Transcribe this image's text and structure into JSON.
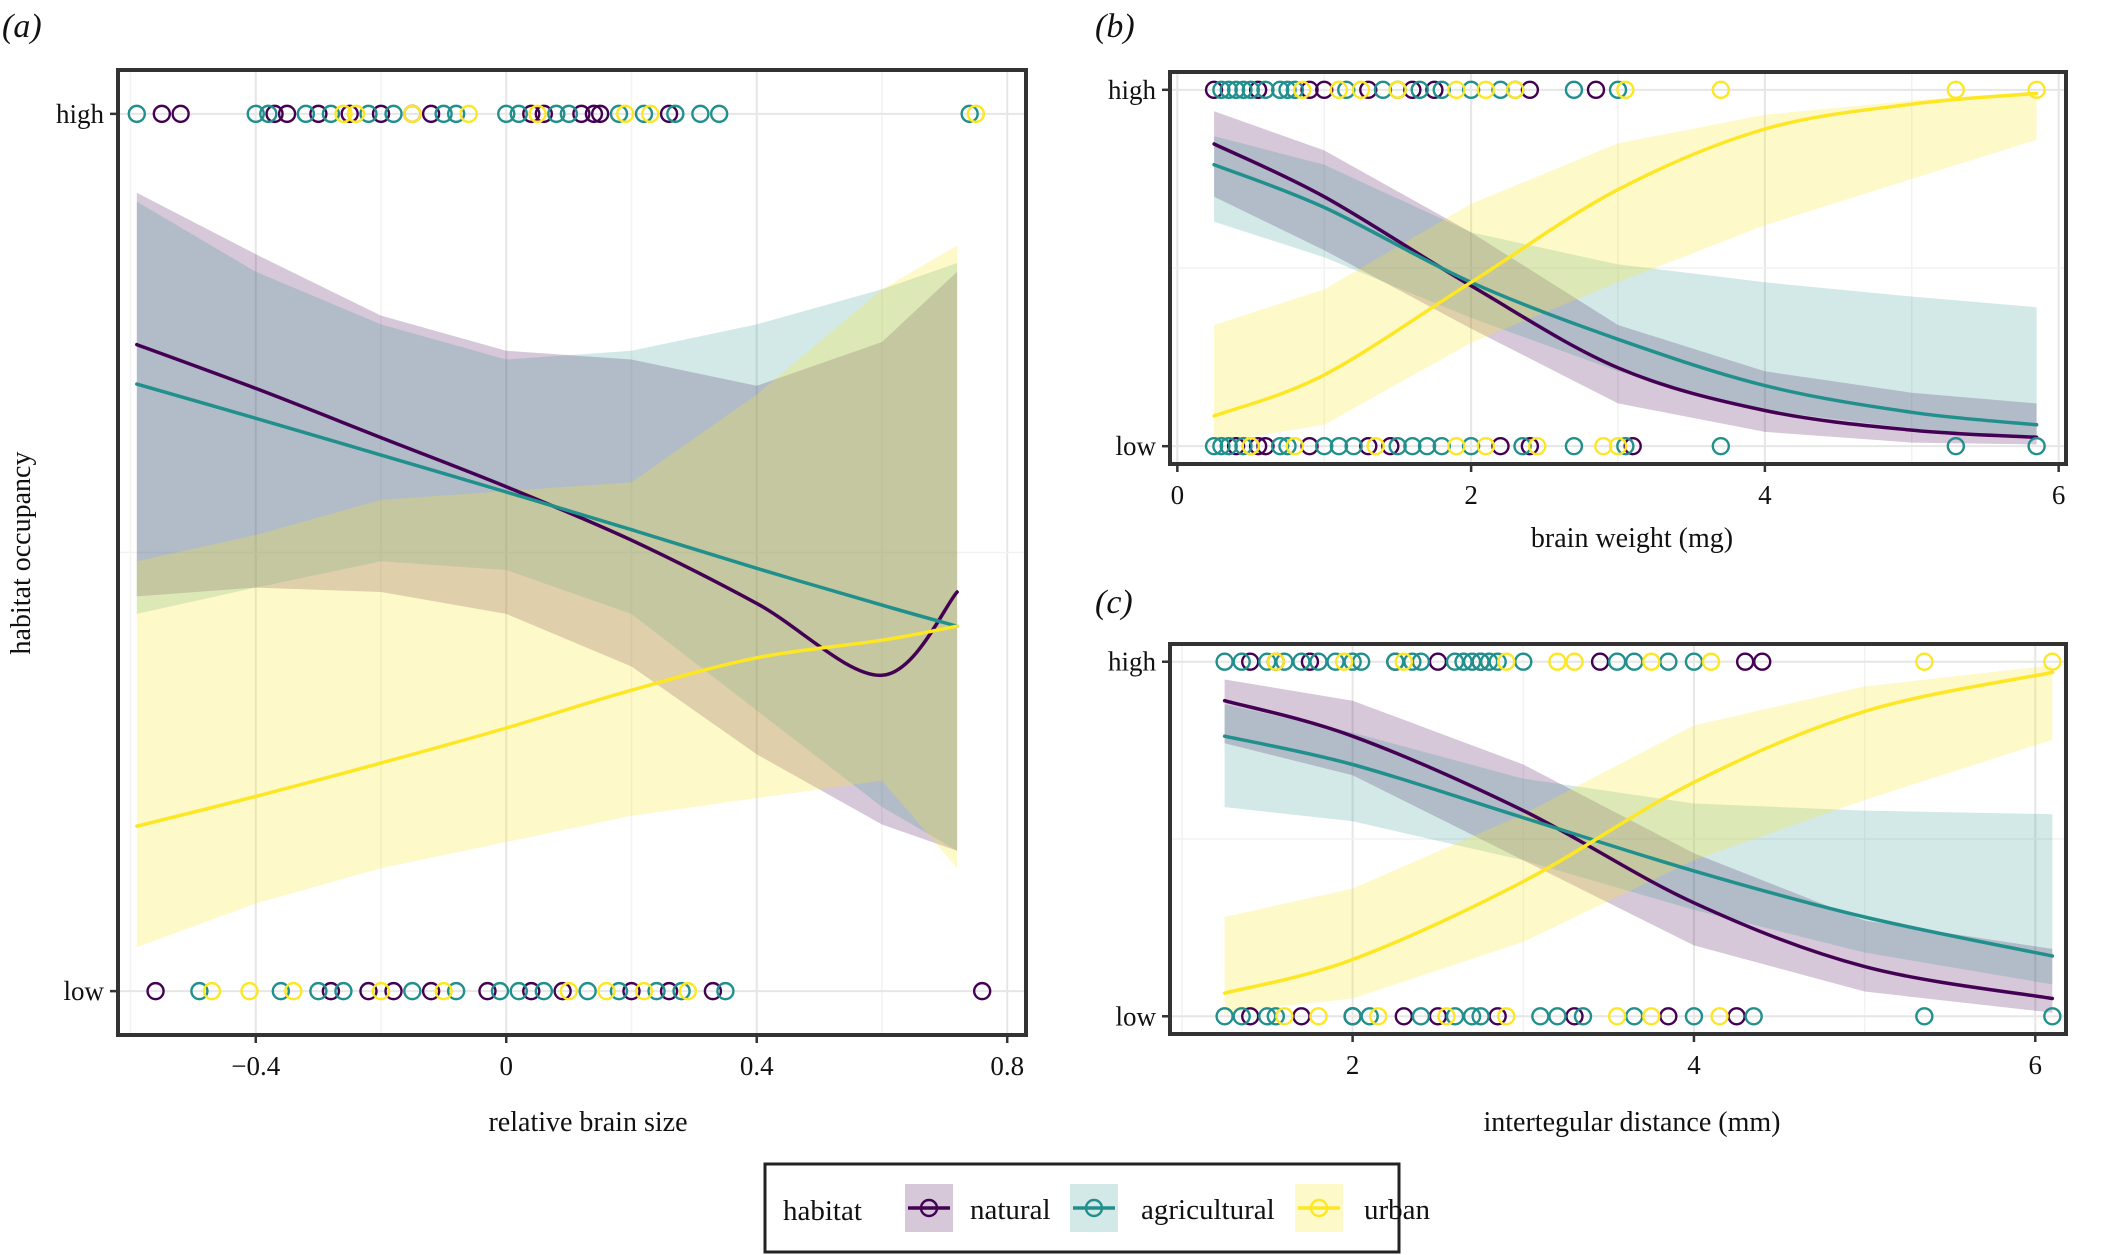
{
  "palette": {
    "natural": "#440154",
    "agricultural": "#21908C",
    "urban": "#FDE725"
  },
  "legend": {
    "title": "habitat",
    "entries": [
      "natural",
      "agricultural",
      "urban"
    ]
  },
  "chart_data": [
    {
      "panel": "a",
      "panel_label": "(a)",
      "type": "line",
      "xlabel": "relative brain size",
      "ylabel": "habitat occupancy",
      "xlim": [
        -0.62,
        0.83
      ],
      "ylim": [
        -0.05,
        1.05
      ],
      "xticks": [
        -0.4,
        0,
        0.4,
        0.8
      ],
      "xtick_labels": [
        "−0.4",
        "0",
        "0.4",
        "0.8"
      ],
      "yticks": [
        0,
        1
      ],
      "ytick_labels": [
        "low",
        "high"
      ],
      "grid": true,
      "series": [
        {
          "name": "natural",
          "x": [
            -0.59,
            -0.4,
            -0.2,
            0.0,
            0.2,
            0.4,
            0.6,
            0.72
          ],
          "y": [
            0.737,
            0.687,
            0.631,
            0.575,
            0.514,
            0.442,
            0.36,
            0.455
          ],
          "ci_low": [
            0.45,
            0.46,
            0.455,
            0.43,
            0.37,
            0.27,
            0.19,
            0.16
          ],
          "ci_high": [
            0.91,
            0.84,
            0.77,
            0.73,
            0.72,
            0.69,
            0.74,
            0.82
          ]
        },
        {
          "name": "agricultural",
          "x": [
            -0.59,
            -0.4,
            -0.2,
            0.0,
            0.2,
            0.4,
            0.6,
            0.72
          ],
          "y": [
            0.692,
            0.653,
            0.611,
            0.569,
            0.526,
            0.482,
            0.44,
            0.416
          ],
          "ci_low": [
            0.43,
            0.46,
            0.49,
            0.48,
            0.43,
            0.32,
            0.21,
            0.16
          ],
          "ci_high": [
            0.9,
            0.82,
            0.76,
            0.72,
            0.73,
            0.76,
            0.8,
            0.83
          ]
        },
        {
          "name": "urban",
          "x": [
            -0.59,
            -0.4,
            -0.2,
            0.0,
            0.2,
            0.4,
            0.6,
            0.72
          ],
          "y": [
            0.188,
            0.222,
            0.26,
            0.3,
            0.343,
            0.38,
            0.4,
            0.416
          ],
          "ci_low": [
            0.05,
            0.1,
            0.14,
            0.17,
            0.2,
            0.22,
            0.24,
            0.14
          ],
          "ci_high": [
            0.49,
            0.52,
            0.56,
            0.57,
            0.58,
            0.68,
            0.8,
            0.85
          ]
        }
      ],
      "points_high": {
        "natural": [
          -0.55,
          -0.52,
          -0.37,
          -0.35,
          -0.3,
          -0.25,
          -0.2,
          -0.15,
          -0.12,
          0.04,
          0.06,
          0.12,
          0.14,
          0.15,
          0.26
        ],
        "agricultural": [
          -0.59,
          -0.4,
          -0.38,
          -0.32,
          -0.28,
          -0.22,
          -0.18,
          -0.1,
          -0.08,
          0.0,
          0.02,
          0.08,
          0.1,
          0.18,
          0.22,
          0.27,
          0.31,
          0.34,
          0.74
        ],
        "urban": [
          -0.26,
          -0.24,
          -0.15,
          -0.06,
          0.05,
          0.19,
          0.23,
          0.75
        ]
      },
      "points_low": {
        "natural": [
          -0.56,
          -0.28,
          -0.22,
          -0.18,
          -0.12,
          -0.03,
          0.04,
          0.09,
          0.2,
          0.26,
          0.33,
          0.76
        ],
        "agricultural": [
          -0.49,
          -0.36,
          -0.3,
          -0.26,
          -0.15,
          -0.08,
          -0.01,
          0.02,
          0.06,
          0.13,
          0.18,
          0.24,
          0.28,
          0.35
        ],
        "urban": [
          -0.47,
          -0.41,
          -0.34,
          -0.2,
          -0.1,
          0.1,
          0.16,
          0.22,
          0.29
        ]
      }
    },
    {
      "panel": "b",
      "panel_label": "(b)",
      "type": "line",
      "xlabel": "brain weight (mg)",
      "ylabel": "",
      "xlim": [
        -0.05,
        6.05
      ],
      "ylim": [
        -0.05,
        1.05
      ],
      "xticks": [
        0,
        2,
        4,
        6
      ],
      "xtick_labels": [
        "0",
        "2",
        "4",
        "6"
      ],
      "yticks": [
        0,
        1
      ],
      "ytick_labels": [
        "low",
        "high"
      ],
      "grid": true,
      "series": [
        {
          "name": "natural",
          "x": [
            0.25,
            1.0,
            2.0,
            3.0,
            4.0,
            5.0,
            5.85
          ],
          "y": [
            0.848,
            0.7,
            0.45,
            0.22,
            0.1,
            0.045,
            0.025
          ],
          "ci_low": [
            0.7,
            0.55,
            0.33,
            0.12,
            0.04,
            0.01,
            0.005
          ],
          "ci_high": [
            0.94,
            0.83,
            0.6,
            0.34,
            0.21,
            0.15,
            0.12
          ]
        },
        {
          "name": "agricultural",
          "x": [
            0.25,
            1.0,
            2.0,
            3.0,
            4.0,
            5.0,
            5.85
          ],
          "y": [
            0.79,
            0.67,
            0.46,
            0.3,
            0.17,
            0.095,
            0.06
          ],
          "ci_low": [
            0.63,
            0.53,
            0.36,
            0.21,
            0.1,
            0.05,
            0.02
          ],
          "ci_high": [
            0.87,
            0.79,
            0.6,
            0.51,
            0.46,
            0.42,
            0.39
          ]
        },
        {
          "name": "urban",
          "x": [
            0.25,
            1.0,
            2.0,
            3.0,
            4.0,
            5.0,
            5.85
          ],
          "y": [
            0.085,
            0.2,
            0.46,
            0.72,
            0.89,
            0.96,
            0.99
          ],
          "ci_low": [
            0.01,
            0.06,
            0.29,
            0.46,
            0.62,
            0.75,
            0.86
          ],
          "ci_high": [
            0.34,
            0.44,
            0.68,
            0.85,
            0.93,
            0.97,
            0.995
          ]
        }
      ],
      "points_high": {
        "natural": [
          0.25,
          0.55,
          0.9,
          1.0,
          1.3,
          1.6,
          1.75,
          2.4,
          2.85
        ],
        "agricultural": [
          0.3,
          0.35,
          0.4,
          0.45,
          0.5,
          0.6,
          0.7,
          0.75,
          0.8,
          1.15,
          1.4,
          1.5,
          1.65,
          1.8,
          2.0,
          2.2,
          2.3,
          2.7,
          3.0
        ],
        "urban": [
          0.85,
          1.1,
          1.25,
          1.5,
          1.9,
          2.1,
          2.3,
          3.05,
          3.7,
          5.3,
          5.85
        ]
      },
      "points_low": {
        "natural": [
          0.4,
          0.55,
          0.6,
          0.9,
          1.3,
          1.45,
          2.2,
          2.4,
          3.1
        ],
        "agricultural": [
          0.25,
          0.3,
          0.35,
          0.45,
          0.5,
          0.7,
          0.75,
          1.0,
          1.1,
          1.2,
          1.5,
          1.6,
          1.7,
          1.8,
          2.0,
          2.35,
          2.7,
          3.05,
          3.7,
          5.3,
          5.85
        ],
        "urban": [
          0.5,
          0.8,
          1.35,
          1.9,
          2.1,
          2.45,
          2.9,
          3.0
        ]
      }
    },
    {
      "panel": "c",
      "panel_label": "(c)",
      "type": "line",
      "xlabel": "intertegular distance (mm)",
      "ylabel": "",
      "xlim": [
        0.93,
        6.18
      ],
      "ylim": [
        -0.05,
        1.05
      ],
      "xticks": [
        2,
        4,
        6
      ],
      "xtick_labels": [
        "2",
        "4",
        "6"
      ],
      "yticks": [
        0,
        1
      ],
      "ytick_labels": [
        "low",
        "high"
      ],
      "grid": true,
      "series": [
        {
          "name": "natural",
          "x": [
            1.25,
            2.0,
            3.0,
            4.0,
            5.0,
            6.1
          ],
          "y": [
            0.89,
            0.79,
            0.58,
            0.32,
            0.14,
            0.05
          ],
          "ci_low": [
            0.77,
            0.68,
            0.44,
            0.2,
            0.07,
            0.01
          ],
          "ci_high": [
            0.95,
            0.89,
            0.71,
            0.46,
            0.27,
            0.19
          ]
        },
        {
          "name": "agricultural",
          "x": [
            1.25,
            2.0,
            3.0,
            4.0,
            5.0,
            6.1
          ],
          "y": [
            0.79,
            0.71,
            0.56,
            0.41,
            0.28,
            0.17
          ],
          "ci_low": [
            0.59,
            0.55,
            0.44,
            0.3,
            0.18,
            0.09
          ],
          "ci_high": [
            0.88,
            0.8,
            0.67,
            0.6,
            0.58,
            0.57
          ]
        },
        {
          "name": "urban",
          "x": [
            1.25,
            2.0,
            3.0,
            4.0,
            5.0,
            6.1
          ],
          "y": [
            0.065,
            0.16,
            0.38,
            0.66,
            0.86,
            0.97
          ],
          "ci_low": [
            0.01,
            0.05,
            0.21,
            0.44,
            0.61,
            0.78
          ],
          "ci_high": [
            0.28,
            0.36,
            0.57,
            0.82,
            0.93,
            0.99
          ]
        }
      ],
      "points_high": {
        "natural": [
          1.4,
          1.55,
          1.75,
          2.25,
          2.5,
          2.75,
          3.45,
          4.3,
          4.4
        ],
        "agricultural": [
          1.25,
          1.35,
          1.5,
          1.6,
          1.7,
          1.8,
          1.9,
          2.0,
          2.05,
          2.25,
          2.35,
          2.4,
          2.6,
          2.65,
          2.7,
          2.75,
          2.8,
          2.85,
          3.0,
          3.55,
          3.65,
          3.85,
          4.0
        ],
        "urban": [
          1.55,
          1.95,
          2.3,
          2.9,
          3.2,
          3.3,
          3.75,
          4.1,
          5.35,
          6.1
        ]
      },
      "points_low": {
        "natural": [
          1.4,
          1.7,
          2.0,
          2.3,
          2.5,
          2.85,
          3.3,
          3.85,
          4.25
        ],
        "agricultural": [
          1.25,
          1.35,
          1.5,
          1.55,
          2.0,
          2.1,
          2.4,
          2.6,
          2.7,
          2.75,
          3.1,
          3.2,
          3.35,
          3.65,
          4.0,
          4.35,
          5.35,
          6.1
        ],
        "urban": [
          1.6,
          1.8,
          2.15,
          2.55,
          2.9,
          3.55,
          3.75,
          4.15
        ]
      }
    }
  ]
}
